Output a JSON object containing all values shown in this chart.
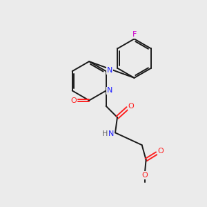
{
  "background_color": "#ebebeb",
  "bond_color": "#1a1a1a",
  "N_color": "#2020ff",
  "O_color": "#ff2020",
  "F_color": "#cc00cc",
  "H_color": "#606060",
  "line_width": 1.4,
  "figsize": [
    3.0,
    3.0
  ],
  "dpi": 100,
  "xlim": [
    0,
    10
  ],
  "ylim": [
    0,
    10
  ]
}
